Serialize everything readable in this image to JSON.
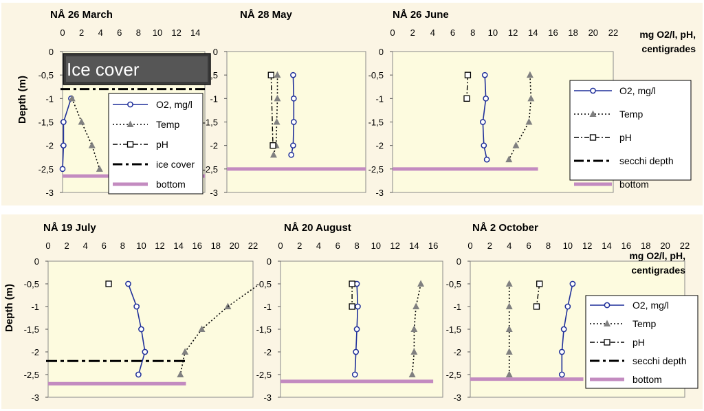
{
  "figure": {
    "y_axis_label": "Depth (m)",
    "unit_note_line1": "mg O2/l, pH,",
    "unit_note_line2": "centigrades",
    "ice_cover_text": "Ice cover"
  },
  "colors": {
    "o2": "#1f2f9a",
    "temp": "#808080",
    "ph": "#000000",
    "dashed": "#000000",
    "bottom": "#c38bc0",
    "panel_background": "#fbf5e4",
    "plot_background": "#fdfbdf"
  },
  "chart_data": [
    {
      "type": "line",
      "title": "NÅ 26 March",
      "ylabel": "Depth (m)",
      "xlim": [
        0,
        15
      ],
      "x_ticks": [
        "0",
        "2",
        "4",
        "6",
        "8",
        "10",
        "12",
        "14"
      ],
      "ylim": [
        -3,
        0
      ],
      "y_ticks": [
        "0",
        "-0,5",
        "-1",
        "-1,5",
        "-2",
        "-2,5",
        "-3"
      ],
      "series": [
        {
          "name": "O2, mg/l",
          "points": [
            [
              0.9,
              -1
            ],
            [
              0.1,
              -1.5
            ],
            [
              0.1,
              -2
            ],
            [
              0.0,
              -2.5
            ]
          ]
        },
        {
          "name": "Temp",
          "points": [
            [
              1.0,
              -1
            ],
            [
              2.0,
              -1.5
            ],
            [
              3.1,
              -2
            ],
            [
              3.9,
              -2.5
            ]
          ]
        },
        {
          "name": "pH",
          "points": []
        }
      ],
      "hlines": [
        {
          "name": "ice cover",
          "depth": -0.8
        },
        {
          "name": "bottom",
          "depth": -2.65
        }
      ],
      "annotations": [
        "Ice cover"
      ],
      "legend": [
        "O2, mg/l",
        "Temp",
        "pH",
        "ice cover",
        "bottom"
      ]
    },
    {
      "type": "line",
      "title": "NÅ 28 May",
      "xlim": [
        0,
        22
      ],
      "ylim": [
        -3,
        0
      ],
      "series": [
        {
          "name": "O2, mg/l",
          "points": [
            [
              10.5,
              -0.5
            ],
            [
              10.6,
              -1
            ],
            [
              10.6,
              -1.5
            ],
            [
              10.5,
              -2
            ],
            [
              10.2,
              -2.2
            ]
          ]
        },
        {
          "name": "Temp",
          "points": [
            [
              8.0,
              -0.5
            ],
            [
              8.0,
              -1
            ],
            [
              7.9,
              -1.5
            ],
            [
              7.8,
              -2
            ],
            [
              7.4,
              -2.2
            ]
          ]
        },
        {
          "name": "pH",
          "points": [
            [
              7.0,
              -0.5
            ],
            [
              7.3,
              -2
            ]
          ]
        }
      ],
      "hlines": [
        {
          "name": "bottom",
          "depth": -2.5
        }
      ]
    },
    {
      "type": "line",
      "title": "NÅ 26 June",
      "xlabel": "mg O2/l, pH, centigrades",
      "xlim": [
        0,
        22
      ],
      "x_ticks": [
        "0",
        "2",
        "4",
        "6",
        "8",
        "10",
        "12",
        "14",
        "16",
        "18",
        "20",
        "22"
      ],
      "ylim": [
        -3,
        0
      ],
      "series": [
        {
          "name": "O2, mg/l",
          "points": [
            [
              9.2,
              -0.5
            ],
            [
              9.3,
              -1
            ],
            [
              9.0,
              -1.5
            ],
            [
              9.1,
              -2
            ],
            [
              9.4,
              -2.3
            ]
          ]
        },
        {
          "name": "Temp",
          "points": [
            [
              13.7,
              -0.5
            ],
            [
              13.8,
              -1
            ],
            [
              13.6,
              -1.5
            ],
            [
              12.3,
              -2
            ],
            [
              11.6,
              -2.3
            ]
          ]
        },
        {
          "name": "pH",
          "points": [
            [
              7.5,
              -0.5
            ],
            [
              7.4,
              -1
            ]
          ]
        }
      ],
      "hlines": [
        {
          "name": "bottom",
          "depth": -2.5
        }
      ],
      "legend": [
        "O2, mg/l",
        "Temp",
        "pH",
        "secchi depth",
        "bottom"
      ]
    },
    {
      "type": "line",
      "title": "NÅ 19 July",
      "ylabel": "Depth (m)",
      "xlim": [
        0,
        22
      ],
      "x_ticks": [
        "0",
        "2",
        "4",
        "6",
        "8",
        "10",
        "12",
        "14",
        "16",
        "18",
        "20",
        "22"
      ],
      "ylim": [
        -3,
        0
      ],
      "y_ticks": [
        "0",
        "-0,5",
        "-1",
        "-1,5",
        "-2",
        "-2,5",
        "-3"
      ],
      "series": [
        {
          "name": "O2, mg/l",
          "points": [
            [
              8.6,
              -0.5
            ],
            [
              9.5,
              -1
            ],
            [
              10.0,
              -1.5
            ],
            [
              10.4,
              -2
            ],
            [
              9.7,
              -2.5
            ]
          ]
        },
        {
          "name": "Temp",
          "points": [
            [
              19.3,
              -1
            ],
            [
              16.5,
              -1.5
            ],
            [
              14.7,
              -2
            ],
            [
              14.2,
              -2.5
            ]
          ]
        },
        {
          "name": "pH",
          "points": [
            [
              6.5,
              -0.5
            ]
          ]
        }
      ],
      "hlines": [
        {
          "name": "secchi depth",
          "depth": -2.2
        },
        {
          "name": "bottom",
          "depth": -2.7
        }
      ]
    },
    {
      "type": "line",
      "title": "NÅ 20 August",
      "xlim": [
        0,
        17
      ],
      "x_ticks": [
        "0",
        "2",
        "4",
        "6",
        "8",
        "10",
        "12",
        "14",
        "16"
      ],
      "ylim": [
        -3,
        0
      ],
      "series": [
        {
          "name": "O2, mg/l",
          "points": [
            [
              8.0,
              -0.5
            ],
            [
              8.1,
              -1
            ],
            [
              8.0,
              -1.5
            ],
            [
              7.9,
              -2
            ],
            [
              7.8,
              -2.5
            ]
          ]
        },
        {
          "name": "Temp",
          "points": [
            [
              14.7,
              -0.5
            ],
            [
              14.2,
              -1
            ],
            [
              14.0,
              -1.5
            ],
            [
              14.0,
              -2
            ],
            [
              13.8,
              -2.5
            ]
          ]
        },
        {
          "name": "pH",
          "points": [
            [
              7.5,
              -0.5
            ],
            [
              7.5,
              -1
            ]
          ]
        }
      ],
      "hlines": [
        {
          "name": "bottom",
          "depth": -2.65
        }
      ]
    },
    {
      "type": "line",
      "title": "NÅ 2 October",
      "xlabel": "mg O2/l, pH, centigrades",
      "xlim": [
        0,
        22
      ],
      "x_ticks": [
        "0",
        "2",
        "4",
        "6",
        "8",
        "10",
        "12",
        "14",
        "16",
        "18",
        "20",
        "22"
      ],
      "ylim": [
        -3,
        0
      ],
      "series": [
        {
          "name": "O2, mg/l",
          "points": [
            [
              10.5,
              -0.5
            ],
            [
              10.0,
              -1
            ],
            [
              9.6,
              -1.5
            ],
            [
              9.4,
              -2
            ],
            [
              9.4,
              -2.5
            ]
          ]
        },
        {
          "name": "Temp",
          "points": [
            [
              4.0,
              -0.5
            ],
            [
              4.0,
              -1
            ],
            [
              4.0,
              -1.5
            ],
            [
              4.0,
              -2
            ],
            [
              4.0,
              -2.5
            ]
          ]
        },
        {
          "name": "pH",
          "points": [
            [
              7.1,
              -0.5
            ],
            [
              6.8,
              -1
            ]
          ]
        }
      ],
      "hlines": [
        {
          "name": "bottom",
          "depth": -2.6
        }
      ],
      "legend": [
        "O2, mg/l",
        "Temp",
        "pH",
        "secchi depth",
        "bottom"
      ]
    }
  ]
}
